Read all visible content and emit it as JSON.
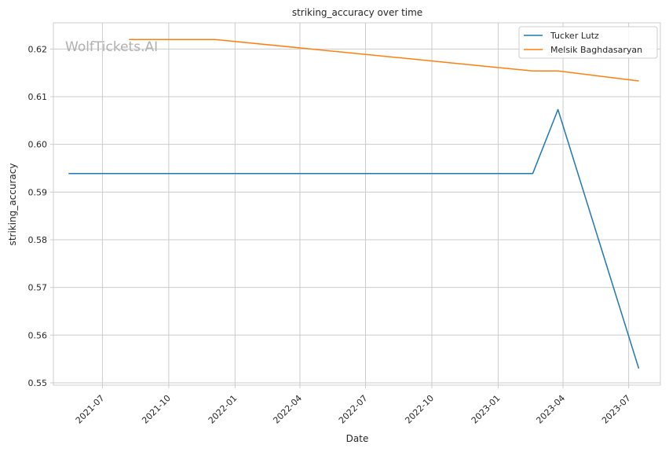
{
  "chart_data": {
    "type": "line",
    "title": "striking_accuracy over time",
    "xlabel": "Date",
    "ylabel": "striking_accuracy",
    "watermark": "WolfTickets.AI",
    "x_ticks": [
      "2021-07",
      "2021-10",
      "2022-01",
      "2022-04",
      "2022-07",
      "2022-10",
      "2023-01",
      "2023-04",
      "2023-07"
    ],
    "y_ticks": [
      "0.55",
      "0.56",
      "0.57",
      "0.58",
      "0.59",
      "0.60",
      "0.61",
      "0.62"
    ],
    "xlim": [
      "2021-04-24",
      "2023-08-14"
    ],
    "ylim": [
      0.5495,
      0.6255
    ],
    "grid": true,
    "legend_position": "top-right",
    "series": [
      {
        "name": "Tucker Lutz",
        "color": "#1f77b4",
        "points": [
          {
            "x": "2021-05-15",
            "y": 0.5939
          },
          {
            "x": "2023-02-18",
            "y": 0.5939
          },
          {
            "x": "2023-03-25",
            "y": 0.6073
          },
          {
            "x": "2023-07-15",
            "y": 0.553
          }
        ]
      },
      {
        "name": "Melsik Baghdasaryan",
        "color": "#ff7f0e",
        "points": [
          {
            "x": "2021-08-07",
            "y": 0.622
          },
          {
            "x": "2021-12-04",
            "y": 0.622
          },
          {
            "x": "2023-02-18",
            "y": 0.6154
          },
          {
            "x": "2023-03-25",
            "y": 0.6154
          },
          {
            "x": "2023-07-15",
            "y": 0.6133
          }
        ]
      }
    ]
  }
}
